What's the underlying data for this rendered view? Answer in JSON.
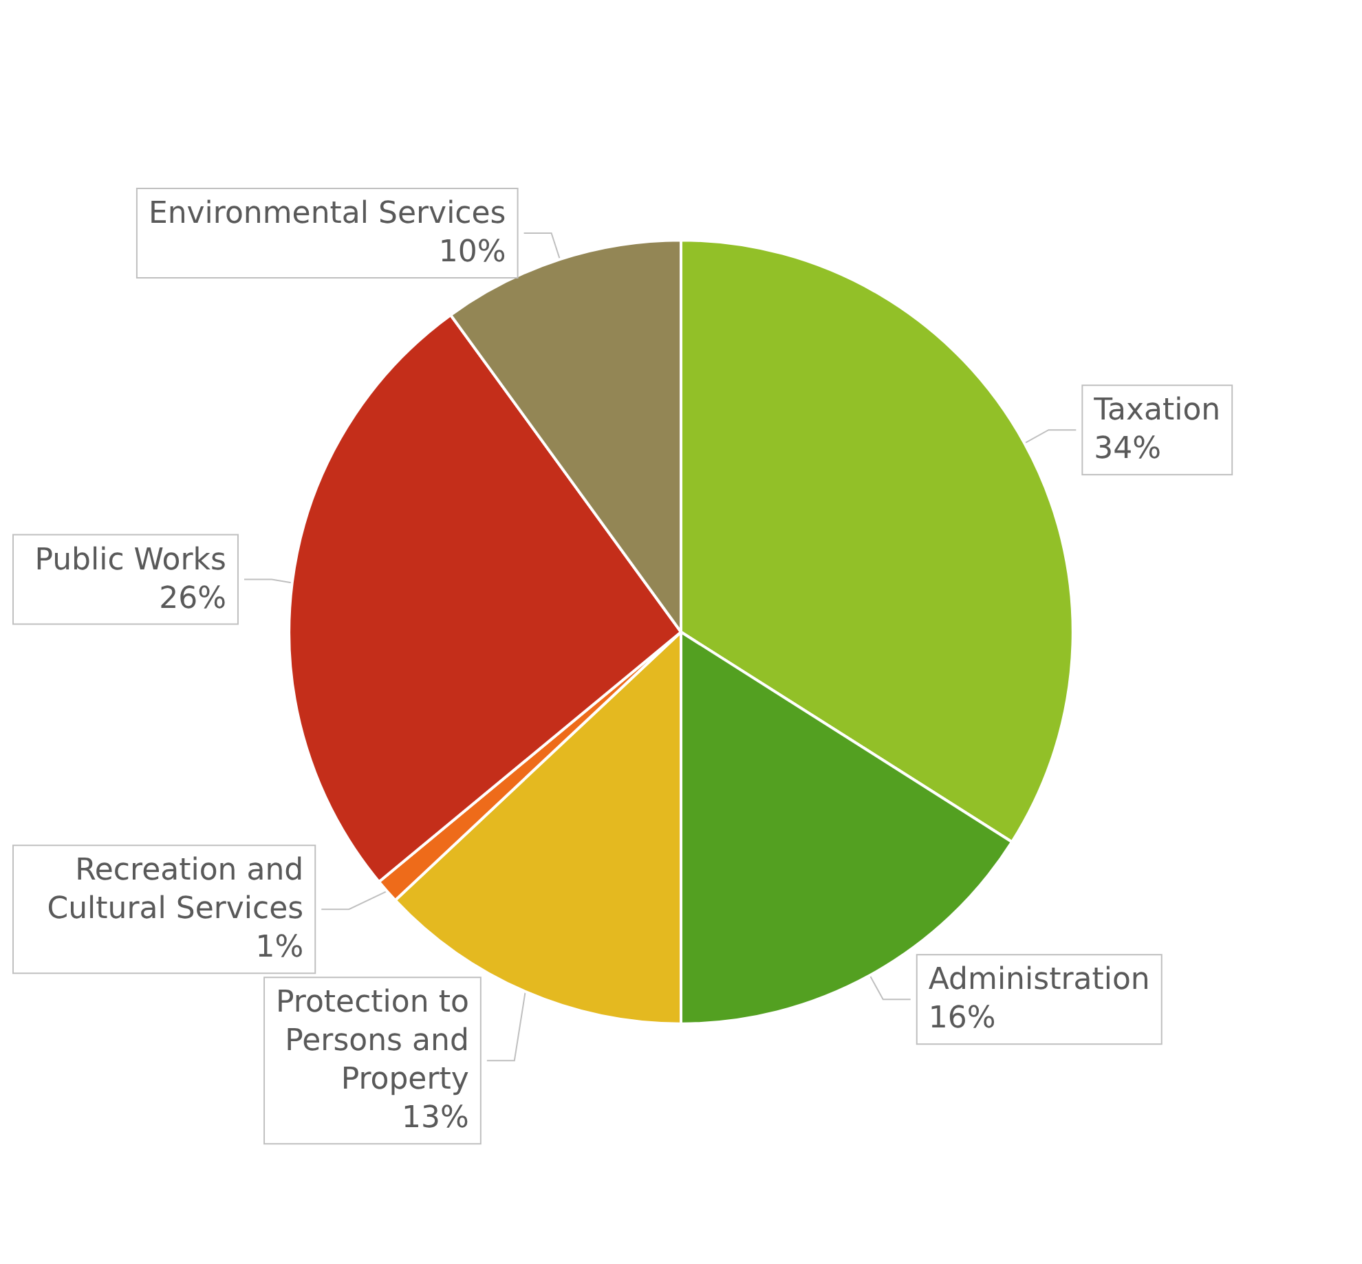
{
  "chart_data": {
    "type": "pie",
    "categories": [
      "Taxation",
      "Administration",
      "Protection to Persons and Property",
      "Recreation and Cultural Services",
      "Public Works",
      "Environmental Services"
    ],
    "values": [
      34,
      16,
      13,
      1,
      26,
      10
    ],
    "value_labels": [
      "34%",
      "16%",
      "13%",
      "1%",
      "26%",
      "10%"
    ],
    "colors": [
      "#92c028",
      "#53a021",
      "#e4b920",
      "#ee6b1a",
      "#c42e1a",
      "#938655"
    ],
    "legend": false
  }
}
